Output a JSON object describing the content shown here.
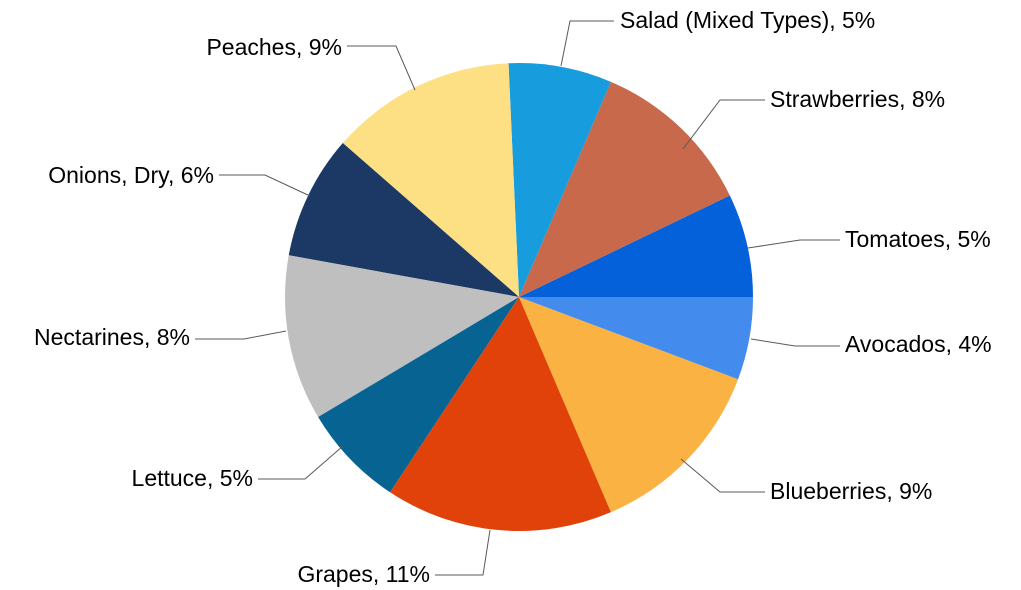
{
  "chart_data": {
    "type": "pie",
    "title": "",
    "start_angle_deg": 0,
    "direction": "counterclockwise",
    "legend": "none",
    "slices": [
      {
        "label": "Tomatoes, 5%",
        "name": "Tomatoes",
        "value": 5,
        "color": "#0561d9"
      },
      {
        "label": "Strawberries, 8%",
        "name": "Strawberries",
        "value": 8,
        "color": "#c8694c"
      },
      {
        "label": "Salad (Mixed Types), 5%",
        "name": "Salad (Mixed Types)",
        "value": 5,
        "color": "#179ddd"
      },
      {
        "label": "Peaches, 9%",
        "name": "Peaches",
        "value": 9,
        "color": "#fee084"
      },
      {
        "label": "Onions, Dry, 6%",
        "name": "Onions, Dry",
        "value": 6,
        "color": "#1c3865"
      },
      {
        "label": "Nectarines, 8%",
        "name": "Nectarines",
        "value": 8,
        "color": "#bfbfbf"
      },
      {
        "label": "Lettuce, 5%",
        "name": "Lettuce",
        "value": 5,
        "color": "#066392"
      },
      {
        "label": "Grapes, 11%",
        "name": "Grapes",
        "value": 11,
        "color": "#e0420a"
      },
      {
        "label": "Blueberries, 9%",
        "name": "Blueberries",
        "value": 9,
        "color": "#fab342"
      },
      {
        "label": "Avocados, 4%",
        "name": "Avocados",
        "value": 4,
        "color": "#438ced"
      }
    ]
  }
}
